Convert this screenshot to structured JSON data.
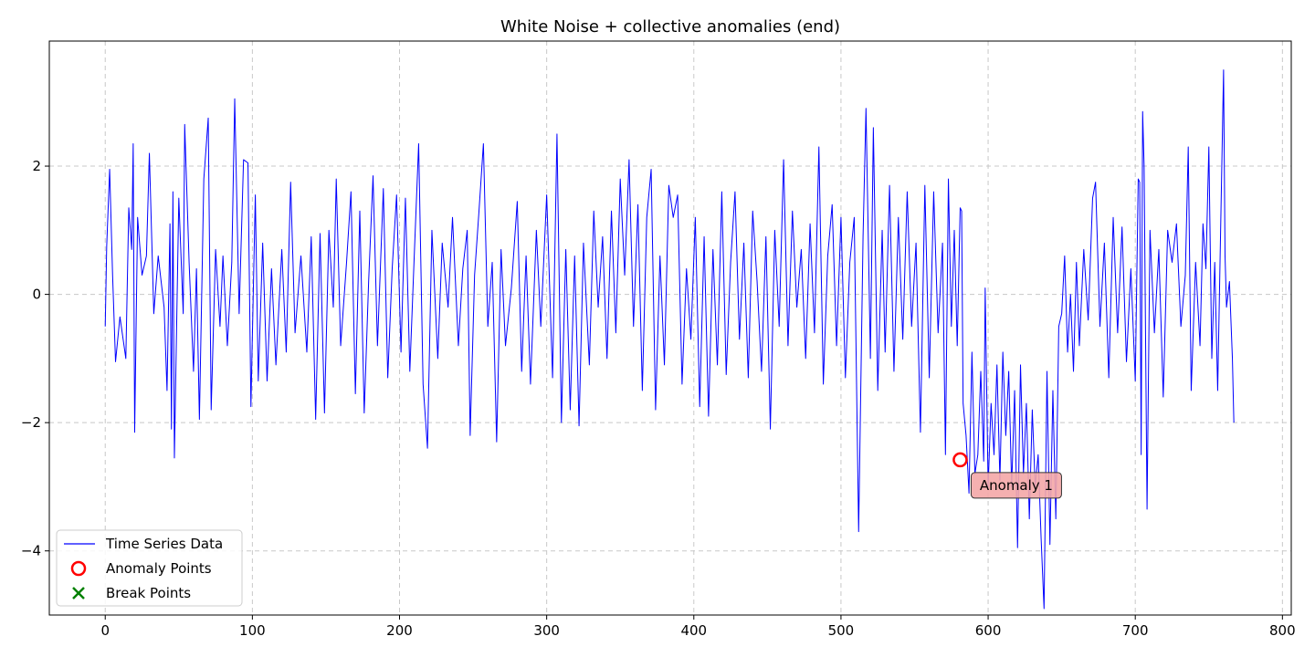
{
  "chart_data": {
    "type": "line",
    "title": "White Noise + collective anomalies (end)",
    "xlabel": "",
    "ylabel": "",
    "xlim": [
      -38,
      806
    ],
    "ylim": [
      -5.0,
      3.95
    ],
    "x_ticks": [
      0,
      100,
      200,
      300,
      400,
      500,
      600,
      700,
      800
    ],
    "y_ticks": [
      -4,
      -2,
      0,
      2
    ],
    "y_tick_labels": [
      "−4",
      "−2",
      "0",
      "2"
    ],
    "grid": true,
    "legend_position": "lower-left",
    "colors": {
      "series": "#0000ff",
      "anomaly": "#ff0000",
      "break": "#008000",
      "annotation_fill": "#f4a7a7"
    },
    "series": [
      {
        "name": "Time Series Data",
        "x_start": 0,
        "x_step": 1,
        "anchors": [
          [
            0,
            -0.5
          ],
          [
            1,
            0.75
          ],
          [
            3,
            1.95
          ],
          [
            5,
            0.3
          ],
          [
            7,
            -1.05
          ],
          [
            10,
            -0.35
          ],
          [
            14,
            -1.0
          ],
          [
            16,
            1.35
          ],
          [
            18,
            0.7
          ],
          [
            19,
            2.35
          ],
          [
            20,
            -2.15
          ],
          [
            22,
            1.2
          ],
          [
            25,
            0.3
          ],
          [
            28,
            0.6
          ],
          [
            30,
            2.2
          ],
          [
            33,
            -0.3
          ],
          [
            36,
            0.6
          ],
          [
            40,
            -0.2
          ],
          [
            42,
            -1.5
          ],
          [
            44,
            1.1
          ],
          [
            45,
            -2.1
          ],
          [
            46,
            1.6
          ],
          [
            47,
            -2.55
          ],
          [
            50,
            1.5
          ],
          [
            53,
            -0.3
          ],
          [
            54,
            2.65
          ],
          [
            57,
            0.5
          ],
          [
            60,
            -1.2
          ],
          [
            62,
            0.4
          ],
          [
            64,
            -1.95
          ],
          [
            67,
            1.8
          ],
          [
            70,
            2.75
          ],
          [
            72,
            -1.8
          ],
          [
            75,
            0.7
          ],
          [
            78,
            -0.5
          ],
          [
            80,
            0.6
          ],
          [
            83,
            -0.8
          ],
          [
            86,
            0.5
          ],
          [
            88,
            3.05
          ],
          [
            91,
            -0.3
          ],
          [
            94,
            2.1
          ],
          [
            97,
            2.05
          ],
          [
            99,
            -1.75
          ],
          [
            102,
            1.55
          ],
          [
            104,
            -1.35
          ],
          [
            107,
            0.8
          ],
          [
            110,
            -1.35
          ],
          [
            113,
            0.4
          ],
          [
            116,
            -1.1
          ],
          [
            120,
            0.7
          ],
          [
            123,
            -0.9
          ],
          [
            126,
            1.75
          ],
          [
            129,
            -0.6
          ],
          [
            133,
            0.6
          ],
          [
            137,
            -0.9
          ],
          [
            140,
            0.9
          ],
          [
            143,
            -1.95
          ],
          [
            146,
            0.95
          ],
          [
            149,
            -1.85
          ],
          [
            152,
            1.0
          ],
          [
            155,
            -0.2
          ],
          [
            157,
            1.8
          ],
          [
            160,
            -0.8
          ],
          [
            164,
            0.5
          ],
          [
            167,
            1.6
          ],
          [
            170,
            -1.55
          ],
          [
            173,
            1.3
          ],
          [
            176,
            -1.85
          ],
          [
            179,
            0.2
          ],
          [
            182,
            1.85
          ],
          [
            185,
            -0.8
          ],
          [
            189,
            1.65
          ],
          [
            192,
            -1.3
          ],
          [
            195,
            0.4
          ],
          [
            198,
            1.55
          ],
          [
            201,
            -0.9
          ],
          [
            204,
            1.5
          ],
          [
            207,
            -1.2
          ],
          [
            210,
            0.6
          ],
          [
            213,
            2.35
          ],
          [
            216,
            -1.4
          ],
          [
            219,
            -2.4
          ],
          [
            222,
            1.0
          ],
          [
            226,
            -1.0
          ],
          [
            229,
            0.8
          ],
          [
            233,
            -0.2
          ],
          [
            236,
            1.2
          ],
          [
            240,
            -0.8
          ],
          [
            243,
            0.4
          ],
          [
            246,
            1.0
          ],
          [
            248,
            -2.2
          ],
          [
            251,
            0.3
          ],
          [
            254,
            1.3
          ],
          [
            257,
            2.35
          ],
          [
            260,
            -0.5
          ],
          [
            263,
            0.5
          ],
          [
            266,
            -2.3
          ],
          [
            269,
            0.7
          ],
          [
            272,
            -0.8
          ],
          [
            276,
            0.1
          ],
          [
            280,
            1.45
          ],
          [
            283,
            -1.2
          ],
          [
            286,
            0.6
          ],
          [
            289,
            -1.4
          ],
          [
            293,
            1.0
          ],
          [
            296,
            -0.5
          ],
          [
            300,
            1.55
          ],
          [
            304,
            -1.3
          ],
          [
            307,
            2.5
          ],
          [
            310,
            -2.0
          ],
          [
            313,
            0.7
          ],
          [
            316,
            -1.8
          ],
          [
            319,
            0.6
          ],
          [
            322,
            -2.05
          ],
          [
            325,
            0.8
          ],
          [
            329,
            -1.1
          ],
          [
            332,
            1.3
          ],
          [
            335,
            -0.2
          ],
          [
            338,
            0.9
          ],
          [
            341,
            -1.0
          ],
          [
            344,
            1.3
          ],
          [
            347,
            -0.6
          ],
          [
            350,
            1.8
          ],
          [
            353,
            0.3
          ],
          [
            356,
            2.1
          ],
          [
            359,
            -0.5
          ],
          [
            362,
            1.4
          ],
          [
            365,
            -1.5
          ],
          [
            368,
            1.2
          ],
          [
            371,
            1.95
          ],
          [
            374,
            -1.8
          ],
          [
            377,
            0.6
          ],
          [
            380,
            -1.1
          ],
          [
            383,
            1.7
          ],
          [
            386,
            1.2
          ],
          [
            389,
            1.55
          ],
          [
            392,
            -1.4
          ],
          [
            395,
            0.4
          ],
          [
            398,
            -0.7
          ],
          [
            401,
            1.2
          ],
          [
            404,
            -1.75
          ],
          [
            407,
            0.9
          ],
          [
            410,
            -1.9
          ],
          [
            413,
            0.7
          ],
          [
            416,
            -1.1
          ],
          [
            419,
            1.6
          ],
          [
            422,
            -1.25
          ],
          [
            425,
            0.5
          ],
          [
            428,
            1.6
          ],
          [
            431,
            -0.7
          ],
          [
            434,
            0.8
          ],
          [
            437,
            -1.3
          ],
          [
            440,
            1.3
          ],
          [
            443,
            0.2
          ],
          [
            446,
            -1.2
          ],
          [
            449,
            0.9
          ],
          [
            452,
            -2.1
          ],
          [
            455,
            1.0
          ],
          [
            458,
            -0.5
          ],
          [
            461,
            2.1
          ],
          [
            464,
            -0.8
          ],
          [
            467,
            1.3
          ],
          [
            470,
            -0.2
          ],
          [
            473,
            0.7
          ],
          [
            476,
            -1.0
          ],
          [
            479,
            1.1
          ],
          [
            482,
            -0.6
          ],
          [
            485,
            2.3
          ],
          [
            488,
            -1.4
          ],
          [
            491,
            0.6
          ],
          [
            494,
            1.4
          ],
          [
            497,
            -0.8
          ],
          [
            500,
            1.2
          ],
          [
            503,
            -1.3
          ],
          [
            506,
            0.5
          ],
          [
            509,
            1.2
          ],
          [
            512,
            -3.7
          ],
          [
            515,
            0.9
          ],
          [
            517,
            2.9
          ],
          [
            520,
            -1.0
          ],
          [
            522,
            2.6
          ],
          [
            525,
            -1.5
          ],
          [
            528,
            1.0
          ],
          [
            530,
            -0.9
          ],
          [
            533,
            1.7
          ],
          [
            536,
            -1.2
          ],
          [
            539,
            1.2
          ],
          [
            542,
            -0.7
          ],
          [
            545,
            1.6
          ],
          [
            548,
            -0.5
          ],
          [
            551,
            0.8
          ],
          [
            554,
            -2.15
          ],
          [
            557,
            1.7
          ],
          [
            560,
            -1.3
          ],
          [
            563,
            1.6
          ],
          [
            566,
            -0.6
          ],
          [
            569,
            0.8
          ],
          [
            571,
            -2.5
          ],
          [
            573,
            1.8
          ],
          [
            575,
            -0.5
          ],
          [
            577,
            1.0
          ],
          [
            579,
            -0.8
          ],
          [
            581,
            1.35
          ],
          [
            582,
            1.3
          ],
          [
            583,
            -1.7
          ],
          [
            585,
            -2.2
          ],
          [
            587,
            -3.1
          ],
          [
            589,
            -0.9
          ],
          [
            591,
            -2.8
          ],
          [
            593,
            -2.5
          ],
          [
            595,
            -1.2
          ],
          [
            597,
            -2.6
          ],
          [
            598,
            0.1
          ],
          [
            600,
            -3.0
          ],
          [
            602,
            -1.7
          ],
          [
            604,
            -2.5
          ],
          [
            606,
            -1.1
          ],
          [
            608,
            -2.9
          ],
          [
            610,
            -0.9
          ],
          [
            612,
            -2.2
          ],
          [
            614,
            -1.2
          ],
          [
            616,
            -3.0
          ],
          [
            618,
            -1.5
          ],
          [
            620,
            -3.95
          ],
          [
            622,
            -1.1
          ],
          [
            624,
            -2.8
          ],
          [
            626,
            -1.7
          ],
          [
            628,
            -3.5
          ],
          [
            630,
            -1.8
          ],
          [
            632,
            -3.0
          ],
          [
            634,
            -2.5
          ],
          [
            636,
            -3.8
          ],
          [
            638,
            -4.9
          ],
          [
            640,
            -1.2
          ],
          [
            642,
            -3.9
          ],
          [
            644,
            -1.5
          ],
          [
            646,
            -3.5
          ],
          [
            648,
            -0.5
          ],
          [
            650,
            -0.3
          ],
          [
            652,
            0.6
          ],
          [
            654,
            -0.9
          ],
          [
            656,
            0.0
          ],
          [
            658,
            -1.2
          ],
          [
            660,
            0.5
          ],
          [
            662,
            -0.8
          ],
          [
            665,
            0.7
          ],
          [
            668,
            -0.4
          ],
          [
            671,
            1.5
          ],
          [
            673,
            1.75
          ],
          [
            676,
            -0.5
          ],
          [
            679,
            0.8
          ],
          [
            682,
            -1.3
          ],
          [
            685,
            1.2
          ],
          [
            688,
            -0.6
          ],
          [
            691,
            1.05
          ],
          [
            694,
            -1.05
          ],
          [
            697,
            0.4
          ],
          [
            700,
            -1.35
          ],
          [
            702,
            1.8
          ],
          [
            703,
            1.75
          ],
          [
            704,
            -2.5
          ],
          [
            705,
            2.85
          ],
          [
            706,
            2.0
          ],
          [
            708,
            -3.35
          ],
          [
            710,
            1.0
          ],
          [
            713,
            -0.6
          ],
          [
            716,
            0.7
          ],
          [
            719,
            -1.6
          ],
          [
            722,
            1.0
          ],
          [
            725,
            0.5
          ],
          [
            728,
            1.1
          ],
          [
            731,
            -0.5
          ],
          [
            734,
            0.3
          ],
          [
            736,
            2.3
          ],
          [
            738,
            -1.5
          ],
          [
            741,
            0.5
          ],
          [
            744,
            -0.8
          ],
          [
            746,
            1.1
          ],
          [
            748,
            0.4
          ],
          [
            750,
            2.3
          ],
          [
            752,
            -1.0
          ],
          [
            754,
            0.5
          ],
          [
            756,
            -1.5
          ],
          [
            758,
            1.0
          ],
          [
            760,
            3.5
          ],
          [
            761,
            0.6
          ],
          [
            762,
            -0.2
          ],
          [
            764,
            0.2
          ],
          [
            766,
            -1.0
          ],
          [
            767,
            -2.0
          ]
        ]
      }
    ],
    "anomaly_points": [
      {
        "x": 581,
        "y": -2.58
      }
    ],
    "break_points": [],
    "annotations": [
      {
        "text": "Anomaly 1",
        "x": 581,
        "y": -2.58
      }
    ],
    "legend": [
      {
        "label": "Time Series Data",
        "marker": "line"
      },
      {
        "label": "Anomaly Points",
        "marker": "circle"
      },
      {
        "label": "Break Points",
        "marker": "x"
      }
    ]
  }
}
